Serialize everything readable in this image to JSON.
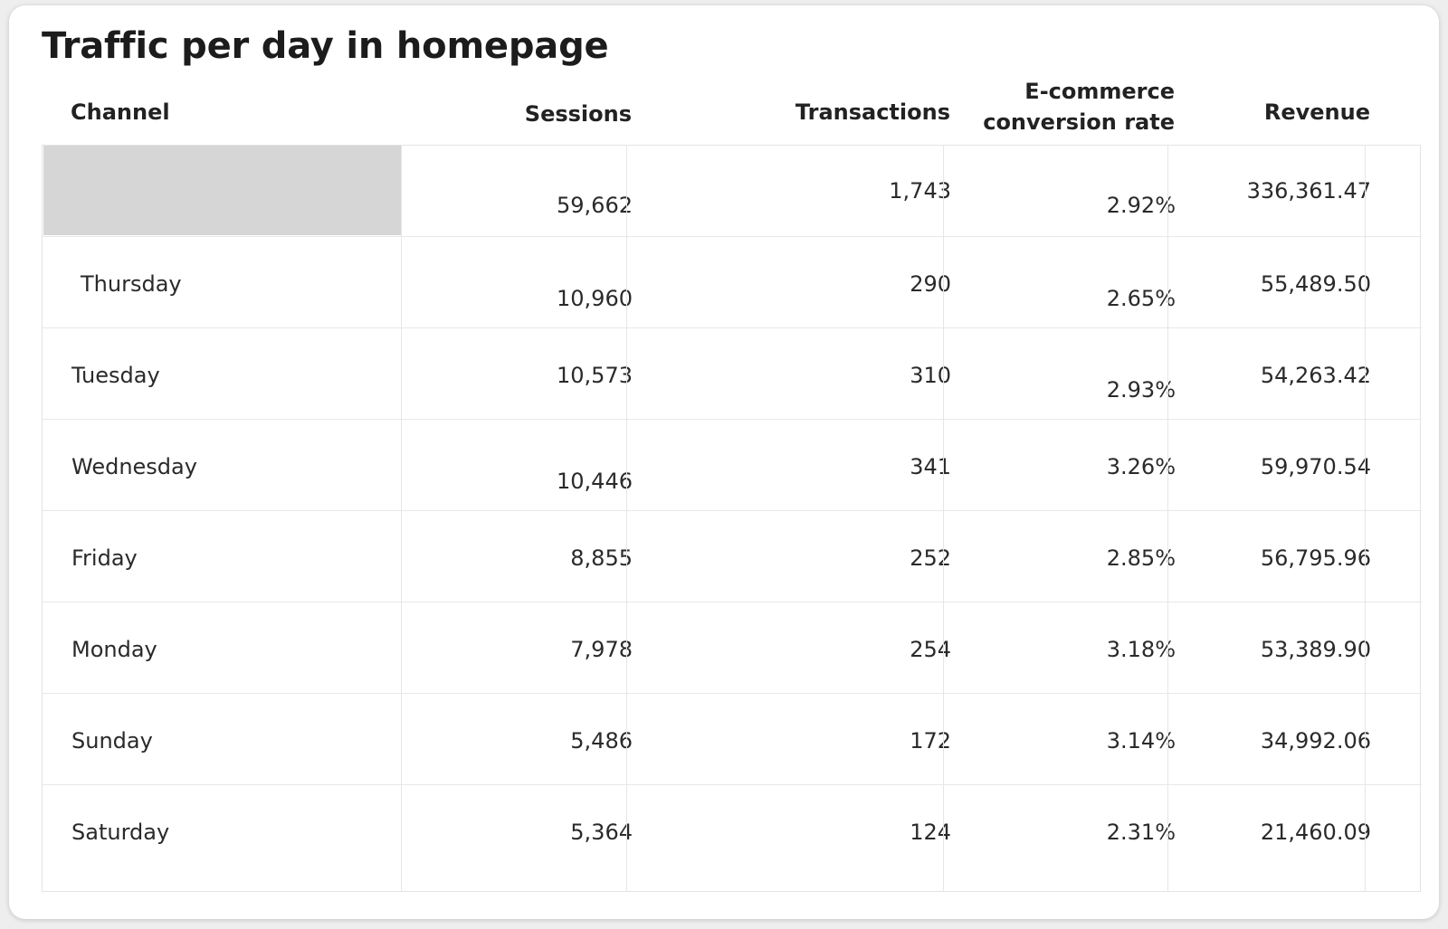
{
  "title": "Traffic per day in homepage",
  "columns": {
    "channel": "Channel",
    "sessions": "Sessions",
    "transactions": "Transactions",
    "conversion_line1": "E-commerce",
    "conversion_line2": "conversion rate",
    "revenue": "Revenue"
  },
  "rows": [
    {
      "channel": "",
      "sessions": "59,662",
      "transactions": "1,743",
      "conversion": "2.92%",
      "revenue": "336,361.47"
    },
    {
      "channel": "Thursday",
      "sessions": "10,960",
      "transactions": "290",
      "conversion": "2.65%",
      "revenue": "55,489.50"
    },
    {
      "channel": "Tuesday",
      "sessions": "10,573",
      "transactions": "310",
      "conversion": "2.93%",
      "revenue": "54,263.42"
    },
    {
      "channel": "Wednesday",
      "sessions": "10,446",
      "transactions": "341",
      "conversion": "3.26%",
      "revenue": "59,970.54"
    },
    {
      "channel": "Friday",
      "sessions": "8,855",
      "transactions": "252",
      "conversion": "2.85%",
      "revenue": "56,795.96"
    },
    {
      "channel": "Monday",
      "sessions": "7,978",
      "transactions": "254",
      "conversion": "3.18%",
      "revenue": "53,389.90"
    },
    {
      "channel": "Sunday",
      "sessions": "5,486",
      "transactions": "172",
      "conversion": "3.14%",
      "revenue": "34,992.06"
    },
    {
      "channel": "Saturday",
      "sessions": "5,364",
      "transactions": "124",
      "conversion": "2.31%",
      "revenue": "21,460.09"
    }
  ],
  "colors": {
    "total_row_shade": "#d6d6d6",
    "grid": "#e6e6e6",
    "text": "#222222"
  }
}
